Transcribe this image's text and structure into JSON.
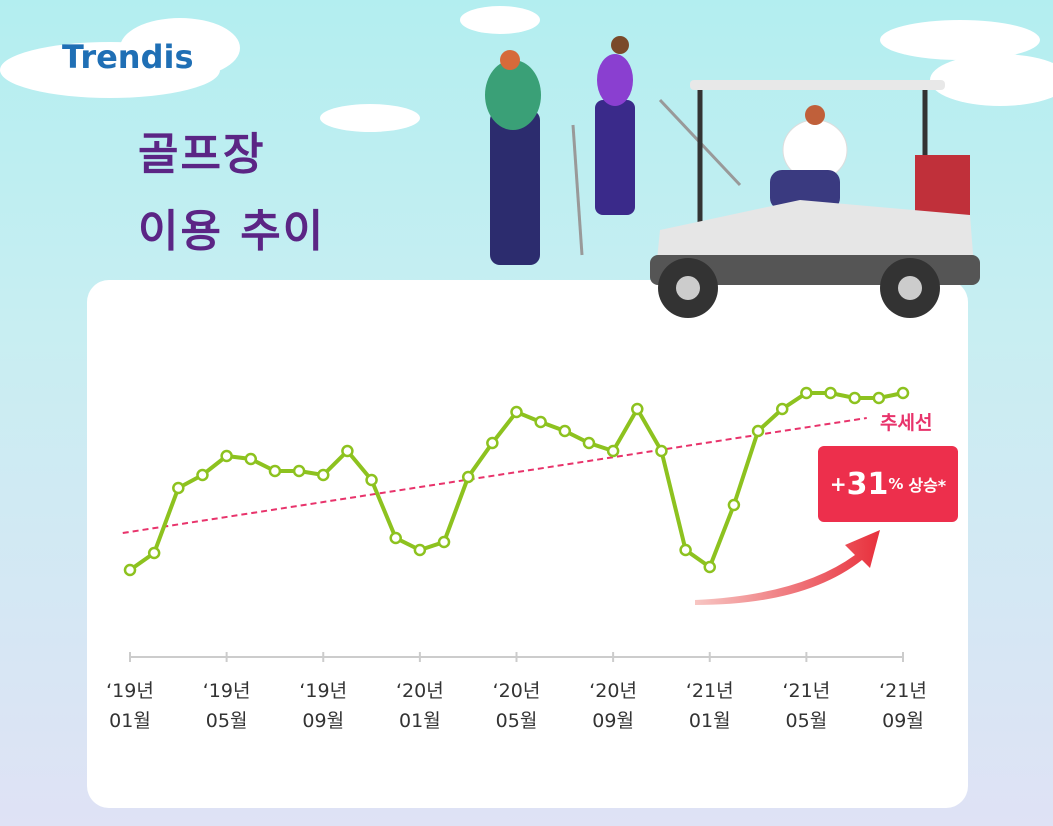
{
  "logo": "Trendis",
  "chart_data": {
    "type": "line",
    "title": [
      "골프장",
      "이용 추이"
    ],
    "categories": [
      "‘19년\n01월",
      null,
      null,
      null,
      "‘19년\n05월",
      null,
      null,
      null,
      "‘19년\n09월",
      null,
      null,
      null,
      "‘20년\n01월",
      null,
      null,
      null,
      "‘20년\n05월",
      null,
      null,
      null,
      "‘20년\n09월",
      null,
      null,
      null,
      "‘21년\n01월",
      null,
      null,
      null,
      "‘21년\n05월",
      null,
      null,
      null,
      "‘21년\n09월"
    ],
    "series": [
      {
        "color": "#8dc21f",
        "values": [
          90,
          107,
          172,
          185,
          204,
          201,
          189,
          189,
          185,
          209,
          180,
          122,
          110,
          118,
          183,
          217,
          248,
          238,
          229,
          217,
          209,
          251,
          209,
          110,
          93,
          155,
          229,
          251,
          267,
          267,
          262,
          262,
          267
        ]
      }
    ],
    "ylim": [
      0,
      300
    ],
    "trend": {
      "label": "추세선",
      "color": "#e8336b",
      "start": 127,
      "end": 242
    },
    "annotation": {
      "sign": "+",
      "value": 31,
      "unit": "%",
      "text": "상승*"
    }
  }
}
